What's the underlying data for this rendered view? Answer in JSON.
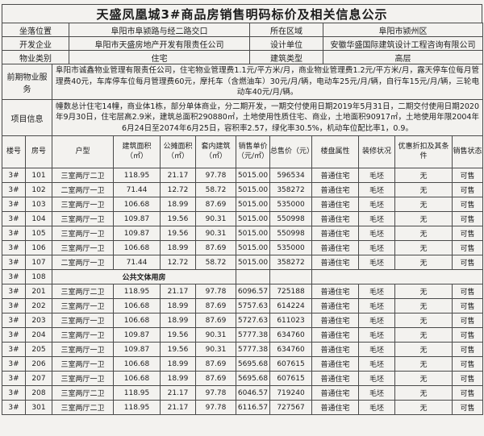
{
  "title": "天盛凤凰城3#商品房销售明码标价及相关信息公示",
  "colors": {
    "background": "#f3f2ef",
    "border": "#4a4a4a",
    "text": "#1c1c1c"
  },
  "info": {
    "rows": [
      {
        "label1": "坐落位置",
        "value1": "阜阳市阜颍路与经二路交口",
        "label2": "所在区域",
        "value2": "阜阳市颍州区"
      },
      {
        "label1": "开发企业",
        "value1": "阜阳市天盛房地产开发有限责任公司",
        "label2": "设计单位",
        "value2": "安徽华盛国际建筑设计工程咨询有限公司"
      },
      {
        "label1": "物业类别",
        "value1": "住宅",
        "label2": "建筑类型",
        "value2": "高层"
      }
    ]
  },
  "property_service": {
    "label": "前期物业服务",
    "text": "阜阳市诚鑫物业管理有限责任公司，住宅物业管理费1.1元/平方米/月，商业物业管理费1.2元/平方米/月，露天停车位每月管理费40元，车库停车位每月管理费60元，摩托车（含燃油车）30元/月/辆，电动车25元/月/辆，自行车15元/月/辆，三轮电动车40元/月/辆。"
  },
  "project_info": {
    "label": "项目信息",
    "text": "幢数总计住宅14幢，商业体1栋，部分单体商业，分二期开发，一期交付使用日期2019年5月31日，二期交付使用日期2020年9月30日，住宅层高2.9米，建筑总面积290880㎡，土地使用性质住宅、商业，土地面积90917㎡，土地使用年限2004年6月24日至2074年6月25日，容积率2.57，绿化率30.5%，机动车位配比率1，0.9。"
  },
  "table": {
    "headers": [
      "楼号",
      "房号",
      "户型",
      "建筑面积（㎡）",
      "公摊面积（㎡）",
      "套内建筑（㎡）",
      "销售单价（元/㎡）",
      "总售价（元）",
      "楼盘属性",
      "装修状况",
      "优惠折扣及其条件",
      "销售状态"
    ],
    "rows": [
      {
        "cells": [
          "3#",
          "101",
          "三室两厅二卫",
          "118.95",
          "21.17",
          "97.78",
          "5015.00",
          "596534",
          "普通住宅",
          "毛坯",
          "无",
          "可售"
        ]
      },
      {
        "cells": [
          "3#",
          "102",
          "二室两厅一卫",
          "71.44",
          "12.72",
          "58.72",
          "5015.00",
          "358272",
          "普通住宅",
          "毛坯",
          "无",
          "可售"
        ]
      },
      {
        "cells": [
          "3#",
          "103",
          "三室两厅一卫",
          "106.68",
          "18.99",
          "87.69",
          "5015.00",
          "535000",
          "普通住宅",
          "毛坯",
          "无",
          "可售"
        ]
      },
      {
        "cells": [
          "3#",
          "104",
          "三室两厅一卫",
          "109.87",
          "19.56",
          "90.31",
          "5015.00",
          "550998",
          "普通住宅",
          "毛坯",
          "无",
          "可售"
        ]
      },
      {
        "cells": [
          "3#",
          "105",
          "三室两厅一卫",
          "109.87",
          "19.56",
          "90.31",
          "5015.00",
          "550998",
          "普通住宅",
          "毛坯",
          "无",
          "可售"
        ]
      },
      {
        "cells": [
          "3#",
          "106",
          "三室两厅一卫",
          "106.68",
          "18.99",
          "87.69",
          "5015.00",
          "535000",
          "普通住宅",
          "毛坯",
          "无",
          "可售"
        ]
      },
      {
        "cells": [
          "3#",
          "107",
          "二室两厅一卫",
          "71.44",
          "12.72",
          "58.72",
          "5015.00",
          "358272",
          "普通住宅",
          "毛坯",
          "无",
          "可售"
        ]
      },
      {
        "building": "3#",
        "room": "108",
        "special": "公共文体用房"
      },
      {
        "cells": [
          "3#",
          "201",
          "三室两厅二卫",
          "118.95",
          "21.17",
          "97.78",
          "6096.57",
          "725188",
          "普通住宅",
          "毛坯",
          "无",
          "可售"
        ]
      },
      {
        "cells": [
          "3#",
          "202",
          "三室两厅一卫",
          "106.68",
          "18.99",
          "87.69",
          "5757.63",
          "614224",
          "普通住宅",
          "毛坯",
          "无",
          "可售"
        ]
      },
      {
        "cells": [
          "3#",
          "203",
          "三室两厅一卫",
          "106.68",
          "18.99",
          "87.69",
          "5727.63",
          "611023",
          "普通住宅",
          "毛坯",
          "无",
          "可售"
        ]
      },
      {
        "cells": [
          "3#",
          "204",
          "三室两厅一卫",
          "109.87",
          "19.56",
          "90.31",
          "5777.38",
          "634760",
          "普通住宅",
          "毛坯",
          "无",
          "可售"
        ]
      },
      {
        "cells": [
          "3#",
          "205",
          "三室两厅一卫",
          "109.87",
          "19.56",
          "90.31",
          "5777.38",
          "634760",
          "普通住宅",
          "毛坯",
          "无",
          "可售"
        ]
      },
      {
        "cells": [
          "3#",
          "206",
          "三室两厅一卫",
          "106.68",
          "18.99",
          "87.69",
          "5695.68",
          "607615",
          "普通住宅",
          "毛坯",
          "无",
          "可售"
        ]
      },
      {
        "cells": [
          "3#",
          "207",
          "三室两厅一卫",
          "106.68",
          "18.99",
          "87.69",
          "5695.68",
          "607615",
          "普通住宅",
          "毛坯",
          "无",
          "可售"
        ]
      },
      {
        "cells": [
          "3#",
          "208",
          "三室两厅二卫",
          "118.95",
          "21.17",
          "97.78",
          "6046.57",
          "719240",
          "普通住宅",
          "毛坯",
          "无",
          "可售"
        ]
      },
      {
        "cells": [
          "3#",
          "301",
          "三室两厅二卫",
          "118.95",
          "21.17",
          "97.78",
          "6116.57",
          "727567",
          "普通住宅",
          "毛坯",
          "无",
          "可售"
        ]
      }
    ]
  }
}
